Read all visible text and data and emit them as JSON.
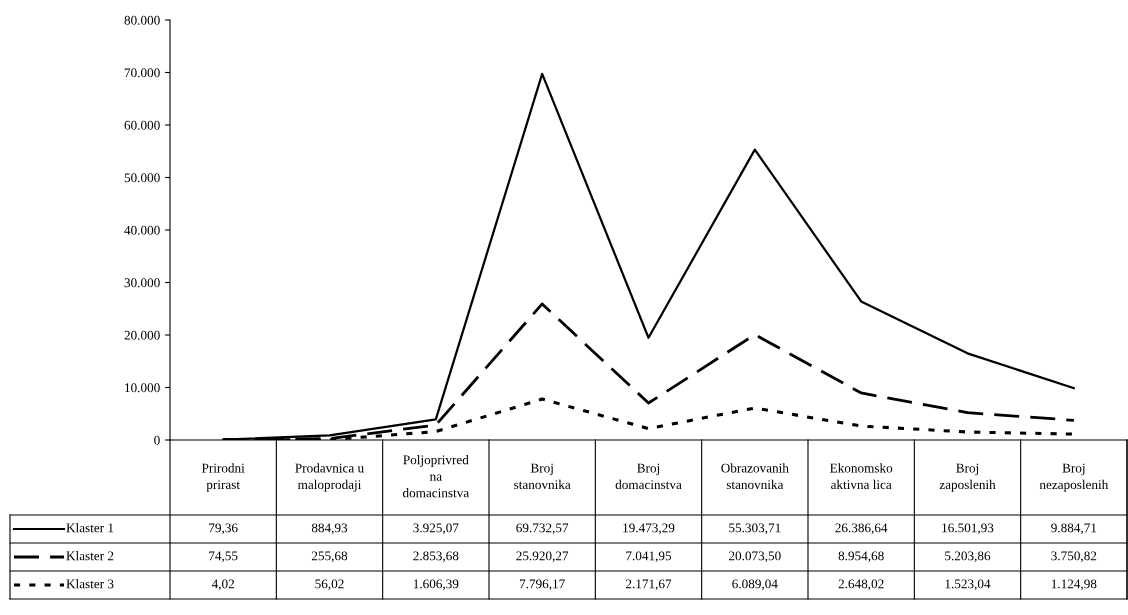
{
  "chart_data": {
    "type": "line",
    "categories": [
      "Prirodni\nprirast",
      "Prodavnica u\nmaloprodaji",
      "Poljoprivred\nna\ndomacinstva",
      "Broj\nstanovnika",
      "Broj\ndomacinstva",
      "Obrazovanih\nstanovnika",
      "Ekonomsko\naktivna lica",
      "Broj\nzaposlenih",
      "Broj\nnezaposlenih"
    ],
    "series": [
      {
        "name": "Klaster 1",
        "color": "#000000",
        "line_style": "solid",
        "values": [
          79.36,
          884.93,
          3925.07,
          69732.57,
          19473.29,
          55303.71,
          26386.64,
          16501.93,
          9884.71
        ],
        "value_labels": [
          "79,36",
          "884,93",
          "3.925,07",
          "69.732,57",
          "19.473,29",
          "55.303,71",
          "26.386,64",
          "16.501,93",
          "9.884,71"
        ]
      },
      {
        "name": "Klaster 2",
        "color": "#000000",
        "line_style": "dashed",
        "values": [
          74.55,
          255.68,
          2853.68,
          25920.27,
          7041.95,
          20073.5,
          8954.68,
          5203.86,
          3750.82
        ],
        "value_labels": [
          "74,55",
          "255,68",
          "2.853,68",
          "25.920,27",
          "7.041,95",
          "20.073,50",
          "8.954,68",
          "5.203,86",
          "3.750,82"
        ]
      },
      {
        "name": "Klaster 3",
        "color": "#000000",
        "line_style": "dotted",
        "values": [
          4.02,
          56.02,
          1606.39,
          7796.17,
          2171.67,
          6089.04,
          2648.02,
          1523.04,
          1124.98
        ],
        "value_labels": [
          "4,02",
          "56,02",
          "1.606,39",
          "7.796,17",
          "2.171,67",
          "6.089,04",
          "2.648,02",
          "1.523,04",
          "1.124,98"
        ]
      }
    ],
    "ylim": [
      0,
      80000
    ],
    "yticks": [
      0,
      {
        "value": 10000,
        "label": "10.000"
      },
      {
        "value": 20000,
        "label": "20.000"
      },
      {
        "value": 30000,
        "label": "30.000"
      },
      {
        "value": 40000,
        "label": "40.000"
      },
      {
        "value": 50000,
        "label": "50.000"
      },
      {
        "value": 60000,
        "label": "60.000"
      },
      {
        "value": 70000,
        "label": "70.000"
      },
      {
        "value": 80000,
        "label": "80.000"
      }
    ],
    "grid": false,
    "legend": "bottom left",
    "marker": "none"
  }
}
